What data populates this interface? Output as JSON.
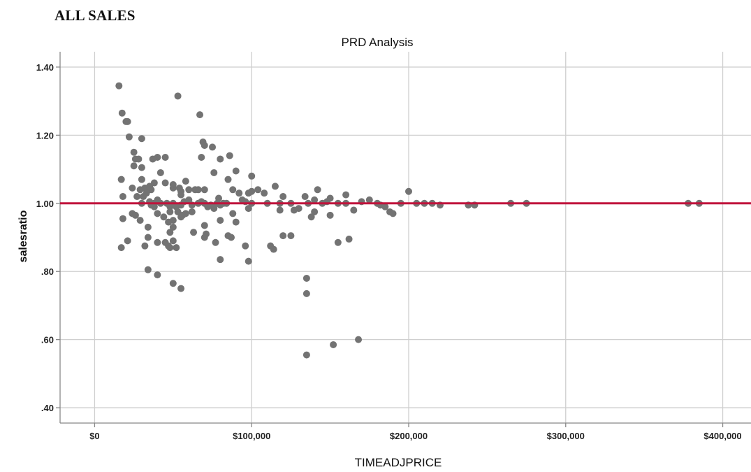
{
  "page": {
    "heading": "ALL SALES"
  },
  "chart_data": {
    "type": "scatter",
    "title": "PRD Analysis",
    "xlabel": "TIMEADJPRICE",
    "ylabel": "salesratio",
    "xlim": [
      -22000,
      418000
    ],
    "ylim": [
      0.355,
      1.445
    ],
    "x_ticks": [
      0,
      100000,
      200000,
      300000,
      400000
    ],
    "x_tick_labels": [
      "$0",
      "$100,000",
      "$200,000",
      "$300,000",
      "$400,000"
    ],
    "y_ticks": [
      0.4,
      0.6,
      0.8,
      1.0,
      1.2,
      1.4
    ],
    "y_tick_labels": [
      ".40",
      ".60",
      ".80",
      "1.00",
      "1.20",
      "1.40"
    ],
    "grid": true,
    "reference_line": {
      "y": 1.0,
      "color": "#c0143c"
    },
    "point_color": "#737373",
    "points": [
      [
        15500,
        1.345
      ],
      [
        17500,
        1.265
      ],
      [
        20000,
        1.24
      ],
      [
        21000,
        1.24
      ],
      [
        22000,
        1.195
      ],
      [
        30000,
        1.19
      ],
      [
        25000,
        1.15
      ],
      [
        26000,
        1.13
      ],
      [
        28000,
        1.13
      ],
      [
        25000,
        1.11
      ],
      [
        30000,
        1.105
      ],
      [
        17000,
        1.07
      ],
      [
        30000,
        1.07
      ],
      [
        24000,
        1.045
      ],
      [
        29000,
        1.04
      ],
      [
        32000,
        1.045
      ],
      [
        33000,
        1.04
      ],
      [
        35000,
        1.05
      ],
      [
        36000,
        1.04
      ],
      [
        27000,
        1.02
      ],
      [
        31000,
        1.02
      ],
      [
        33000,
        1.03
      ],
      [
        18000,
        1.02
      ],
      [
        30000,
        1.0
      ],
      [
        35000,
        1.005
      ],
      [
        38000,
        1.0
      ],
      [
        40000,
        1.01
      ],
      [
        38000,
        0.99
      ],
      [
        36000,
        0.995
      ],
      [
        40000,
        0.97
      ],
      [
        42000,
        1.0
      ],
      [
        24000,
        0.97
      ],
      [
        26000,
        0.965
      ],
      [
        18000,
        0.955
      ],
      [
        29000,
        0.95
      ],
      [
        34000,
        0.93
      ],
      [
        32000,
        0.875
      ],
      [
        17000,
        0.87
      ],
      [
        21000,
        0.89
      ],
      [
        34000,
        0.9
      ],
      [
        40000,
        0.885
      ],
      [
        45000,
        0.885
      ],
      [
        47000,
        0.875
      ],
      [
        48000,
        0.87
      ],
      [
        50000,
        0.89
      ],
      [
        52000,
        0.87
      ],
      [
        42000,
        1.09
      ],
      [
        40000,
        1.135
      ],
      [
        37000,
        1.13
      ],
      [
        38000,
        1.06
      ],
      [
        45000,
        1.135
      ],
      [
        45000,
        1.06
      ],
      [
        50000,
        1.045
      ],
      [
        50000,
        1.055
      ],
      [
        54000,
        1.045
      ],
      [
        55000,
        1.035
      ],
      [
        58000,
        1.065
      ],
      [
        55000,
        1.025
      ],
      [
        46000,
        1.0
      ],
      [
        48000,
        0.99
      ],
      [
        50000,
        1.0
      ],
      [
        52000,
        0.99
      ],
      [
        44000,
        0.96
      ],
      [
        47000,
        0.945
      ],
      [
        48000,
        0.975
      ],
      [
        50000,
        0.95
      ],
      [
        53000,
        0.975
      ],
      [
        55000,
        0.96
      ],
      [
        50000,
        0.93
      ],
      [
        48000,
        0.915
      ],
      [
        55000,
        0.995
      ],
      [
        57000,
        1.005
      ],
      [
        58000,
        0.97
      ],
      [
        60000,
        1.04
      ],
      [
        60000,
        1.01
      ],
      [
        62000,
        0.975
      ],
      [
        62000,
        0.995
      ],
      [
        64000,
        1.04
      ],
      [
        63000,
        0.915
      ],
      [
        56000,
        0.965
      ],
      [
        53000,
        1.315
      ],
      [
        67000,
        1.26
      ],
      [
        69000,
        1.18
      ],
      [
        70000,
        1.17
      ],
      [
        75000,
        1.165
      ],
      [
        68000,
        1.135
      ],
      [
        66000,
        1.04
      ],
      [
        70000,
        1.04
      ],
      [
        66000,
        1.0
      ],
      [
        68000,
        1.005
      ],
      [
        70000,
        1.0
      ],
      [
        72000,
        0.99
      ],
      [
        74000,
        0.995
      ],
      [
        76000,
        0.985
      ],
      [
        78000,
        1.0
      ],
      [
        79000,
        1.015
      ],
      [
        80000,
        0.995
      ],
      [
        82000,
        1.0
      ],
      [
        84000,
        1.0
      ],
      [
        85000,
        1.07
      ],
      [
        86000,
        1.14
      ],
      [
        88000,
        1.04
      ],
      [
        90000,
        1.095
      ],
      [
        92000,
        1.03
      ],
      [
        94000,
        1.01
      ],
      [
        96000,
        1.005
      ],
      [
        98000,
        1.03
      ],
      [
        100000,
        1.035
      ],
      [
        100000,
        1.08
      ],
      [
        80000,
        1.13
      ],
      [
        76000,
        1.09
      ],
      [
        70000,
        0.935
      ],
      [
        70000,
        0.9
      ],
      [
        71000,
        0.91
      ],
      [
        77000,
        0.885
      ],
      [
        80000,
        0.95
      ],
      [
        85000,
        0.905
      ],
      [
        87000,
        0.9
      ],
      [
        88000,
        0.97
      ],
      [
        90000,
        0.945
      ],
      [
        96000,
        0.875
      ],
      [
        98000,
        0.985
      ],
      [
        100000,
        1.0
      ],
      [
        80000,
        0.835
      ],
      [
        98000,
        0.83
      ],
      [
        50000,
        0.765
      ],
      [
        55000,
        0.75
      ],
      [
        34000,
        0.805
      ],
      [
        40000,
        0.79
      ],
      [
        104000,
        1.04
      ],
      [
        108000,
        1.03
      ],
      [
        110000,
        1.0
      ],
      [
        115000,
        1.05
      ],
      [
        118000,
        1.0
      ],
      [
        118000,
        0.98
      ],
      [
        120000,
        1.02
      ],
      [
        120000,
        0.905
      ],
      [
        125000,
        0.905
      ],
      [
        125000,
        1.0
      ],
      [
        127000,
        0.98
      ],
      [
        112000,
        0.875
      ],
      [
        114000,
        0.865
      ],
      [
        130000,
        0.985
      ],
      [
        134000,
        1.02
      ],
      [
        136000,
        1.0
      ],
      [
        138000,
        0.96
      ],
      [
        140000,
        0.975
      ],
      [
        140000,
        1.01
      ],
      [
        142000,
        1.04
      ],
      [
        145000,
        1.0
      ],
      [
        148000,
        1.005
      ],
      [
        150000,
        1.015
      ],
      [
        150000,
        0.965
      ],
      [
        155000,
        0.885
      ],
      [
        155000,
        1.0
      ],
      [
        160000,
        1.025
      ],
      [
        160000,
        1.0
      ],
      [
        165000,
        0.98
      ],
      [
        162000,
        0.895
      ],
      [
        170000,
        1.005
      ],
      [
        175000,
        1.01
      ],
      [
        180000,
        1.0
      ],
      [
        182000,
        0.995
      ],
      [
        185000,
        0.99
      ],
      [
        188000,
        0.975
      ],
      [
        190000,
        0.97
      ],
      [
        195000,
        1.0
      ],
      [
        200000,
        1.035
      ],
      [
        205000,
        1.0
      ],
      [
        210000,
        1.0
      ],
      [
        215000,
        1.0
      ],
      [
        220000,
        0.995
      ],
      [
        238000,
        0.995
      ],
      [
        242000,
        0.995
      ],
      [
        265000,
        1.0
      ],
      [
        275000,
        1.0
      ],
      [
        378000,
        1.0
      ],
      [
        385000,
        1.0
      ],
      [
        135000,
        0.78
      ],
      [
        135000,
        0.735
      ],
      [
        135000,
        0.555
      ],
      [
        152000,
        0.585
      ],
      [
        168000,
        0.6
      ]
    ]
  }
}
